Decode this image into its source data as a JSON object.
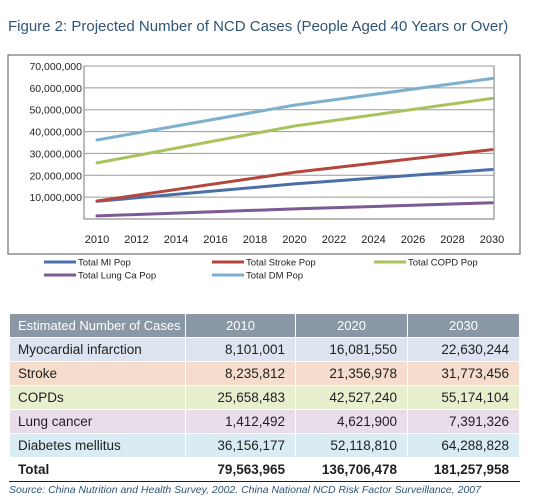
{
  "figure_title": "Figure 2: Projected Number of NCD Cases (People Aged 40 Years or Over)",
  "chart_data": {
    "type": "line",
    "title": "",
    "xlabel": "",
    "ylabel": "",
    "x": [
      2010,
      2030
    ],
    "x_ticks": [
      "2010",
      "2012",
      "2014",
      "2016",
      "2018",
      "2020",
      "2022",
      "2024",
      "2026",
      "2028",
      "2030"
    ],
    "y_ticks": [
      "10,000,000",
      "20,000,000",
      "30,000,000",
      "40,000,000",
      "50,000,000",
      "60,000,000",
      "70,000,000"
    ],
    "xlim": [
      2010,
      2030
    ],
    "ylim": [
      0,
      70000000
    ],
    "grid": true,
    "legend_position": "bottom",
    "series": [
      {
        "name": "Total MI Pop",
        "x": [
          2010,
          2020,
          2030
        ],
        "values": [
          8101001,
          16081550,
          22630244
        ],
        "color": "#4a6fa8"
      },
      {
        "name": "Total Stroke Pop",
        "x": [
          2010,
          2020,
          2030
        ],
        "values": [
          8235812,
          21356978,
          31773456
        ],
        "color": "#b4463d"
      },
      {
        "name": "Total COPD Pop",
        "x": [
          2010,
          2020,
          2030
        ],
        "values": [
          25658483,
          42527240,
          55174104
        ],
        "color": "#a9c35c"
      },
      {
        "name": "Total Lung Ca Pop",
        "x": [
          2010,
          2020,
          2030
        ],
        "values": [
          1412492,
          4621900,
          7391326
        ],
        "color": "#7c5a93"
      },
      {
        "name": "Total DM Pop",
        "x": [
          2010,
          2020,
          2030
        ],
        "values": [
          36156177,
          52118810,
          64288828
        ],
        "color": "#7db0cf"
      }
    ]
  },
  "table": {
    "headers": [
      "Estimated Number of Cases",
      "2010",
      "2020",
      "2030"
    ],
    "rows": [
      {
        "label": "Myocardial infarction",
        "v2010": "8,101,001",
        "v2020": "16,081,550",
        "v2030": "22,630,244"
      },
      {
        "label": "Stroke",
        "v2010": "8,235,812",
        "v2020": "21,356,978",
        "v2030": "31,773,456"
      },
      {
        "label": "COPDs",
        "v2010": "25,658,483",
        "v2020": "42,527,240",
        "v2030": "55,174,104"
      },
      {
        "label": "Lung cancer",
        "v2010": "1,412,492",
        "v2020": "4,621,900",
        "v2030": "7,391,326"
      },
      {
        "label": "Diabetes mellitus",
        "v2010": "36,156,177",
        "v2020": "52,118,810",
        "v2030": "64,288,828"
      },
      {
        "label": "Total",
        "v2010": "79,563,965",
        "v2020": "136,706,478",
        "v2030": "181,257,958"
      }
    ]
  },
  "source": "Source: China Nutrition and Health Survey, 2002. China National NCD Risk Factor Surveillance, 2007"
}
